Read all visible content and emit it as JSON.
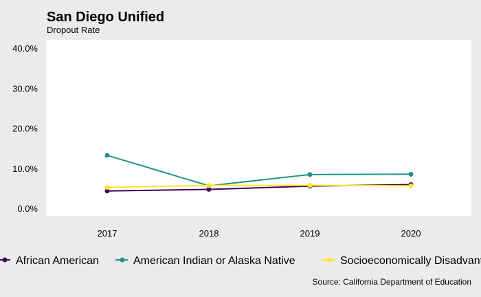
{
  "title": "San Diego Unified",
  "subtitle": "Dropout Rate",
  "source": "Source: California Department of Education",
  "chart_data": {
    "type": "line",
    "x": [
      "2017",
      "2018",
      "2019",
      "2020"
    ],
    "ylim": [
      0,
      0.4
    ],
    "yticks": [
      {
        "value": 0.0,
        "label": "0.0%"
      },
      {
        "value": 0.1,
        "label": "10.0%"
      },
      {
        "value": 0.2,
        "label": "20.0%"
      },
      {
        "value": 0.3,
        "label": "30.0%"
      },
      {
        "value": 0.4,
        "label": "40.0%"
      }
    ],
    "grid": false,
    "legend_position": "bottom",
    "series": [
      {
        "name": "African American",
        "color": "#440154",
        "values": [
          0.045,
          0.049,
          0.057,
          0.061
        ]
      },
      {
        "name": "American Indian or Alaska Native",
        "color": "#21908c",
        "values": [
          0.134,
          0.058,
          0.086,
          0.087
        ]
      },
      {
        "name": "Socioeconomically Disadvantaged",
        "color": "#fde725",
        "values": [
          0.054,
          0.059,
          0.059,
          0.058
        ]
      }
    ]
  }
}
